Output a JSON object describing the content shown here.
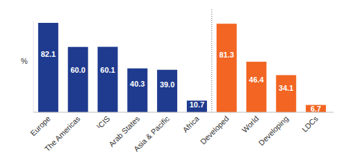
{
  "chart_data": {
    "type": "bar",
    "y_label": "%",
    "categories": [
      "Europe",
      "The Americas",
      "¹CIS",
      "Arab States",
      "Asia & Pacific",
      "Africa",
      "Developed",
      "World",
      "Developing",
      "LDCs"
    ],
    "values": [
      82.1,
      60.0,
      60.1,
      40.3,
      39.0,
      10.7,
      81.3,
      46.4,
      34.1,
      6.7
    ],
    "value_labels": [
      "82.1",
      "60.0",
      "60.1",
      "40.3",
      "39.0",
      "10.7",
      "81.3",
      "46.4",
      "34.1",
      "6.7"
    ],
    "colors": [
      "#1f3b8f",
      "#1f3b8f",
      "#1f3b8f",
      "#1f3b8f",
      "#1f3b8f",
      "#1f3b8f",
      "#f26522",
      "#f26522",
      "#f26522",
      "#f26522"
    ],
    "ylim": [
      0,
      84
    ],
    "yticks": [
      0
    ],
    "tick_labels": "x",
    "data_labels": true,
    "grid": false
  }
}
